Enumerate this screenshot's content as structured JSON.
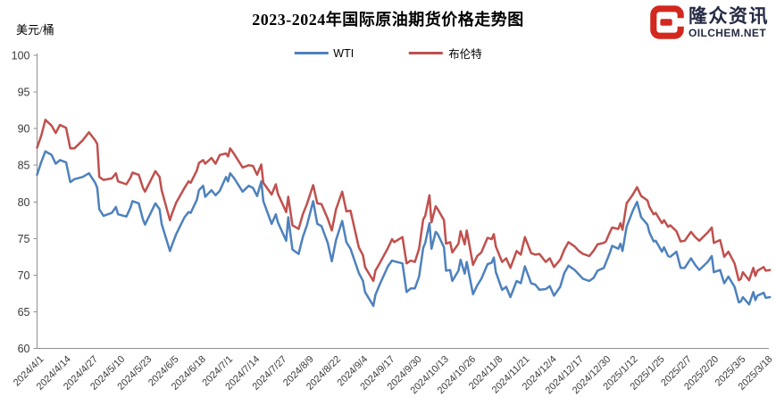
{
  "page": {
    "background": "#ffffff"
  },
  "logo": {
    "name_cn": "隆众资讯",
    "name_en": "OILCHEM.NET",
    "icon_color": "#d2281e",
    "text_color": "#262b45"
  },
  "chart_data": {
    "type": "line",
    "title": "2023-2024年国际原油期货价格走势图",
    "ylabel": "美元/桶",
    "xlabel": "",
    "ylim": [
      60,
      100
    ],
    "ytick_step": 5,
    "grid": false,
    "legend_position": "top-center",
    "axis_color": "#909090",
    "tick_text_color": "#3a3a3a",
    "x_unit": "days since 2024/4/1",
    "x_tick_interval_days": 13,
    "x_tick_labels": [
      "2024/4/1",
      "2024/4/14",
      "2024/4/27",
      "2024/5/10",
      "2024/5/23",
      "2024/6/5",
      "2024/6/18",
      "2024/7/1",
      "2024/7/14",
      "2024/7/27",
      "2024/8/9",
      "2024/8/22",
      "2024/9/4",
      "2024/9/17",
      "2024/9/30",
      "2024/10/13",
      "2024/10/26",
      "2024/11/8",
      "2024/11/21",
      "2024/12/4",
      "2024/12/17",
      "2024/12/30",
      "2025/1/12",
      "2025/1/25",
      "2025/2/7",
      "2025/2/20",
      "2025/3/5",
      "2025/3/18"
    ],
    "x": [
      0,
      2,
      4,
      7,
      9,
      11,
      14,
      16,
      18,
      22,
      25,
      28,
      29,
      30,
      32,
      36,
      38,
      39,
      43,
      45,
      46,
      49,
      51,
      52,
      57,
      59,
      60,
      64,
      65,
      67,
      71,
      73,
      74,
      77,
      78,
      80,
      81,
      84,
      86,
      88,
      91,
      92,
      93,
      95,
      99,
      102,
      104,
      106,
      108,
      109,
      113,
      115,
      116,
      120,
      121,
      123,
      126,
      128,
      130,
      133,
      135,
      137,
      140,
      142,
      144,
      147,
      149,
      151,
      155,
      157,
      158,
      162,
      163,
      165,
      169,
      171,
      172,
      176,
      178,
      180,
      182,
      184,
      186,
      187,
      189,
      190,
      192,
      193,
      196,
      197,
      199,
      200,
      203,
      204,
      206,
      207,
      210,
      212,
      214,
      217,
      219,
      220,
      221,
      224,
      226,
      228,
      231,
      233,
      235,
      238,
      240,
      242,
      245,
      247,
      249,
      252,
      254,
      256,
      259,
      261,
      263,
      266,
      268,
      270,
      273,
      274,
      276,
      277,
      280,
      281,
      282,
      284,
      287,
      289,
      291,
      294,
      295,
      297,
      298,
      301,
      302,
      304,
      305,
      308,
      310,
      312,
      315,
      317,
      319,
      323,
      325,
      326,
      329,
      331,
      333,
      336,
      338,
      339,
      340,
      343,
      345,
      346,
      347,
      350,
      351,
      353
    ],
    "series": [
      {
        "name": "WTI",
        "color": "#4E81BD",
        "values": [
          83.7,
          85.4,
          86.9,
          86.4,
          85.2,
          85.7,
          85.4,
          82.7,
          83.1,
          83.4,
          83.9,
          82.6,
          81.9,
          79.0,
          78.1,
          78.5,
          79.3,
          78.3,
          78.0,
          79.2,
          80.1,
          79.8,
          77.6,
          76.9,
          79.8,
          79.0,
          77.0,
          73.3,
          74.1,
          75.6,
          77.9,
          78.6,
          78.5,
          80.3,
          81.6,
          82.2,
          80.7,
          81.6,
          80.9,
          81.5,
          83.4,
          82.8,
          83.9,
          83.2,
          81.4,
          82.2,
          81.9,
          80.8,
          82.8,
          80.1,
          77.0,
          78.3,
          77.2,
          74.7,
          77.9,
          73.5,
          72.9,
          75.2,
          76.8,
          80.1,
          77.0,
          76.7,
          74.4,
          71.9,
          74.8,
          77.4,
          74.5,
          73.6,
          70.3,
          69.2,
          67.7,
          65.8,
          67.3,
          68.7,
          71.2,
          72.0,
          71.9,
          71.6,
          67.7,
          68.2,
          68.2,
          69.8,
          73.7,
          74.4,
          77.1,
          73.6,
          75.9,
          75.6,
          73.8,
          70.6,
          70.7,
          69.2,
          70.6,
          72.1,
          70.2,
          71.8,
          67.4,
          68.6,
          69.5,
          71.5,
          71.7,
          72.4,
          70.4,
          68.0,
          68.4,
          67.0,
          69.2,
          68.9,
          71.2,
          68.9,
          68.7,
          68.0,
          68.1,
          68.5,
          67.2,
          68.4,
          70.3,
          71.3,
          70.7,
          70.1,
          69.5,
          69.2,
          69.6,
          70.6,
          71.0,
          71.7,
          73.1,
          74.0,
          73.6,
          74.3,
          73.3,
          76.6,
          78.8,
          80.0,
          77.9,
          76.9,
          75.8,
          74.6,
          74.7,
          73.2,
          73.8,
          72.6,
          72.5,
          73.2,
          71.0,
          71.0,
          72.3,
          71.4,
          70.7,
          71.8,
          72.6,
          70.4,
          70.7,
          68.9,
          69.8,
          68.4,
          66.3,
          66.4,
          67.0,
          66.0,
          67.7,
          66.6,
          67.2,
          67.6,
          66.9,
          67.0
        ]
      },
      {
        "name": "布伦特",
        "color": "#C0504D",
        "values": [
          87.4,
          89.0,
          91.2,
          90.4,
          89.4,
          90.5,
          90.1,
          87.3,
          87.3,
          88.4,
          89.5,
          88.4,
          87.9,
          83.4,
          83.0,
          83.2,
          83.9,
          82.8,
          82.4,
          83.3,
          84.0,
          83.7,
          81.9,
          81.4,
          84.2,
          83.4,
          81.6,
          77.5,
          78.4,
          79.9,
          81.9,
          82.8,
          82.6,
          84.3,
          85.3,
          85.7,
          85.2,
          86.0,
          85.2,
          86.4,
          86.6,
          86.2,
          87.3,
          86.5,
          84.7,
          85.0,
          84.9,
          83.7,
          85.1,
          82.6,
          81.0,
          82.4,
          81.1,
          78.6,
          80.7,
          76.8,
          76.3,
          78.3,
          79.7,
          82.3,
          79.8,
          79.7,
          77.7,
          76.1,
          79.0,
          81.4,
          78.7,
          78.8,
          73.8,
          72.7,
          71.1,
          69.2,
          70.6,
          71.6,
          73.7,
          74.9,
          74.5,
          75.2,
          71.6,
          72.0,
          71.8,
          73.6,
          77.6,
          78.1,
          80.9,
          77.2,
          79.4,
          79.0,
          77.5,
          74.3,
          74.5,
          73.1,
          74.3,
          76.0,
          74.2,
          76.1,
          71.4,
          72.6,
          73.1,
          75.1,
          74.9,
          75.6,
          73.9,
          71.8,
          72.3,
          71.0,
          73.3,
          72.8,
          75.2,
          73.0,
          72.8,
          72.9,
          71.8,
          72.3,
          71.1,
          72.1,
          73.5,
          74.5,
          73.9,
          73.3,
          72.9,
          72.6,
          73.3,
          74.2,
          74.4,
          74.6,
          75.9,
          76.5,
          76.3,
          77.1,
          76.2,
          79.8,
          81.0,
          82.0,
          80.8,
          80.2,
          79.3,
          78.3,
          78.5,
          77.1,
          77.5,
          76.6,
          76.8,
          76.0,
          74.6,
          74.7,
          75.9,
          75.2,
          74.7,
          75.8,
          76.5,
          74.4,
          74.8,
          72.5,
          73.2,
          71.6,
          69.3,
          69.5,
          70.4,
          69.3,
          71.0,
          69.9,
          70.6,
          71.1,
          70.6,
          70.7
        ]
      }
    ]
  }
}
